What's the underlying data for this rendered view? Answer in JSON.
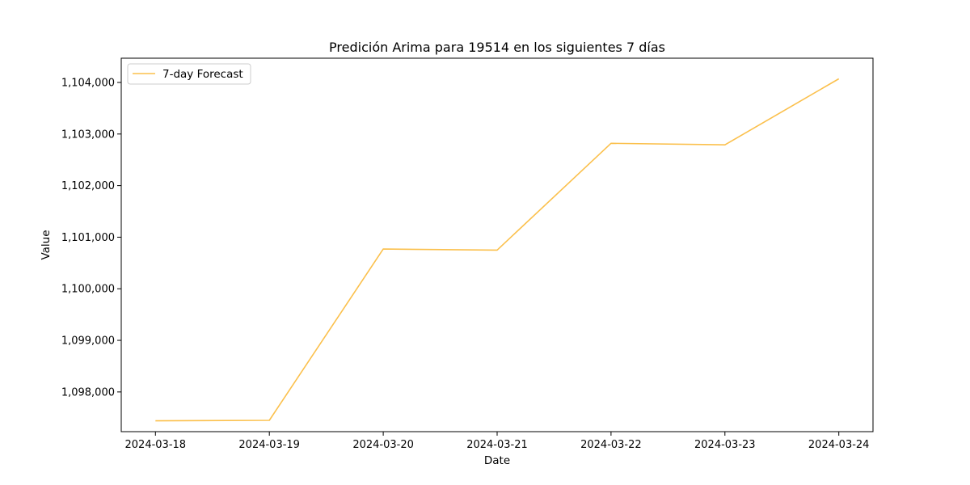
{
  "chart_data": {
    "type": "line",
    "title": "Predición Arima para 19514 en los siguientes 7 días",
    "xlabel": "Date",
    "ylabel": "Value",
    "x": [
      "2024-03-18",
      "2024-03-19",
      "2024-03-20",
      "2024-03-21",
      "2024-03-22",
      "2024-03-23",
      "2024-03-24"
    ],
    "series": [
      {
        "name": "7-day Forecast",
        "color": "#fbc04c",
        "values": [
          1097440,
          1097450,
          1100770,
          1100750,
          1102820,
          1102790,
          1104070
        ]
      }
    ],
    "yticks": [
      1098000,
      1099000,
      1100000,
      1101000,
      1102000,
      1103000,
      1104000
    ],
    "ytick_labels": [
      "1,098,000",
      "1,099,000",
      "1,100,000",
      "1,101,000",
      "1,102,000",
      "1,103,000",
      "1,104,000"
    ],
    "ylim": [
      1097230,
      1104470
    ],
    "grid": false,
    "legend_position": "upper-left"
  }
}
